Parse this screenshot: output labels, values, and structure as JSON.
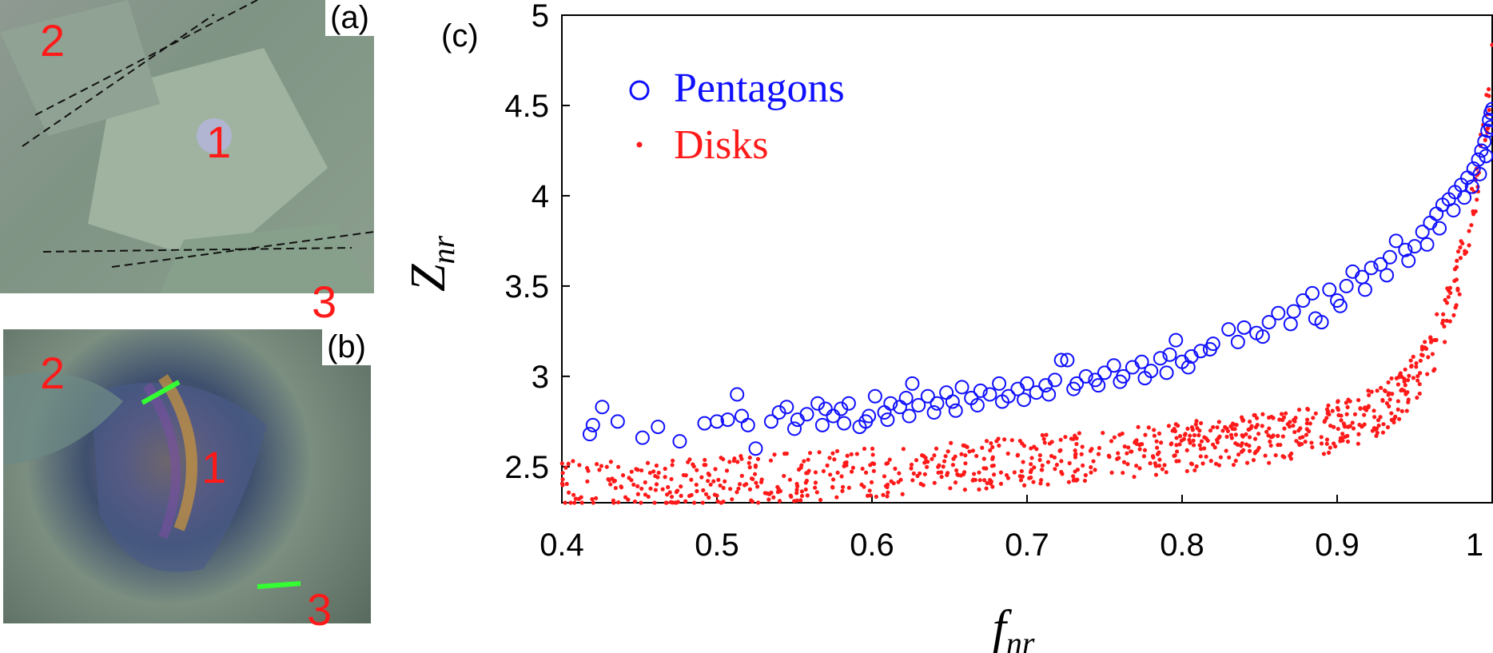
{
  "panel_a": {
    "label": "(a)",
    "numbers": [
      "2",
      "1",
      "3"
    ]
  },
  "panel_b": {
    "label": "(b)",
    "numbers": [
      "2",
      "1",
      "3"
    ]
  },
  "panel_c_label": "(c)",
  "colors": {
    "pentagons": "#1010ff",
    "disks": "#ff1a1a",
    "accent_green": "#33ff33",
    "photo_dash": "#111111"
  },
  "chart_data": {
    "type": "scatter",
    "xlabel": "f_nr",
    "ylabel": "Z_nr",
    "xlim": [
      0.4,
      1.0
    ],
    "ylim": [
      2.3,
      5.0
    ],
    "xticks": [
      "0.4",
      "0.5",
      "0.6",
      "0.7",
      "0.8",
      "0.9",
      "1"
    ],
    "yticks": [
      "2.5",
      "3",
      "3.5",
      "4",
      "4.5",
      "5"
    ],
    "legend_position": "top-left",
    "series": [
      {
        "name": "Pentagons",
        "marker": "circle-open",
        "points": [
          [
            0.418,
            2.68
          ],
          [
            0.42,
            2.73
          ],
          [
            0.426,
            2.83
          ],
          [
            0.436,
            2.75
          ],
          [
            0.452,
            2.66
          ],
          [
            0.462,
            2.72
          ],
          [
            0.476,
            2.64
          ],
          [
            0.492,
            2.74
          ],
          [
            0.5,
            2.75
          ],
          [
            0.507,
            2.76
          ],
          [
            0.513,
            2.9
          ],
          [
            0.516,
            2.78
          ],
          [
            0.52,
            2.73
          ],
          [
            0.525,
            2.6
          ],
          [
            0.535,
            2.75
          ],
          [
            0.54,
            2.8
          ],
          [
            0.545,
            2.83
          ],
          [
            0.552,
            2.76
          ],
          [
            0.558,
            2.79
          ],
          [
            0.565,
            2.85
          ],
          [
            0.57,
            2.82
          ],
          [
            0.575,
            2.78
          ],
          [
            0.58,
            2.82
          ],
          [
            0.585,
            2.85
          ],
          [
            0.592,
            2.72
          ],
          [
            0.598,
            2.78
          ],
          [
            0.602,
            2.89
          ],
          [
            0.608,
            2.8
          ],
          [
            0.612,
            2.85
          ],
          [
            0.618,
            2.83
          ],
          [
            0.622,
            2.88
          ],
          [
            0.626,
            2.96
          ],
          [
            0.63,
            2.84
          ],
          [
            0.636,
            2.89
          ],
          [
            0.642,
            2.85
          ],
          [
            0.648,
            2.91
          ],
          [
            0.652,
            2.86
          ],
          [
            0.658,
            2.94
          ],
          [
            0.664,
            2.88
          ],
          [
            0.67,
            2.92
          ],
          [
            0.676,
            2.9
          ],
          [
            0.682,
            2.96
          ],
          [
            0.688,
            2.89
          ],
          [
            0.694,
            2.93
          ],
          [
            0.7,
            2.96
          ],
          [
            0.706,
            2.91
          ],
          [
            0.712,
            2.95
          ],
          [
            0.718,
            2.98
          ],
          [
            0.722,
            3.09
          ],
          [
            0.726,
            3.09
          ],
          [
            0.732,
            2.96
          ],
          [
            0.738,
            3.0
          ],
          [
            0.744,
            2.98
          ],
          [
            0.75,
            3.02
          ],
          [
            0.756,
            3.06
          ],
          [
            0.762,
            3.0
          ],
          [
            0.768,
            3.05
          ],
          [
            0.774,
            3.08
          ],
          [
            0.78,
            3.03
          ],
          [
            0.786,
            3.1
          ],
          [
            0.792,
            3.12
          ],
          [
            0.796,
            3.2
          ],
          [
            0.8,
            3.08
          ],
          [
            0.806,
            3.11
          ],
          [
            0.812,
            3.14
          ],
          [
            0.82,
            3.18
          ],
          [
            0.83,
            3.26
          ],
          [
            0.84,
            3.27
          ],
          [
            0.848,
            3.24
          ],
          [
            0.856,
            3.3
          ],
          [
            0.862,
            3.35
          ],
          [
            0.872,
            3.36
          ],
          [
            0.878,
            3.42
          ],
          [
            0.884,
            3.46
          ],
          [
            0.89,
            3.3
          ],
          [
            0.895,
            3.48
          ],
          [
            0.9,
            3.42
          ],
          [
            0.906,
            3.5
          ],
          [
            0.91,
            3.58
          ],
          [
            0.916,
            3.55
          ],
          [
            0.922,
            3.6
          ],
          [
            0.928,
            3.62
          ],
          [
            0.934,
            3.66
          ],
          [
            0.938,
            3.75
          ],
          [
            0.944,
            3.7
          ],
          [
            0.95,
            3.72
          ],
          [
            0.955,
            3.8
          ],
          [
            0.96,
            3.85
          ],
          [
            0.964,
            3.9
          ],
          [
            0.968,
            3.95
          ],
          [
            0.972,
            3.98
          ],
          [
            0.976,
            4.02
          ],
          [
            0.98,
            4.06
          ],
          [
            0.984,
            4.1
          ],
          [
            0.988,
            4.15
          ],
          [
            0.991,
            4.2
          ],
          [
            0.993,
            4.25
          ],
          [
            0.995,
            4.3
          ],
          [
            0.997,
            4.36
          ],
          [
            0.998,
            4.42
          ],
          [
            0.999,
            4.46
          ],
          [
            1.0,
            4.48
          ],
          [
            0.999,
            4.38
          ],
          [
            0.996,
            4.22
          ],
          [
            0.992,
            4.12
          ],
          [
            0.987,
            4.05
          ],
          [
            0.982,
            3.99
          ],
          [
            0.975,
            3.92
          ],
          [
            0.966,
            3.82
          ],
          [
            0.958,
            3.73
          ],
          [
            0.946,
            3.64
          ],
          [
            0.932,
            3.56
          ],
          [
            0.918,
            3.48
          ],
          [
            0.902,
            3.39
          ],
          [
            0.886,
            3.32
          ],
          [
            0.87,
            3.29
          ],
          [
            0.852,
            3.22
          ],
          [
            0.836,
            3.19
          ],
          [
            0.818,
            3.15
          ],
          [
            0.804,
            3.05
          ],
          [
            0.79,
            3.02
          ],
          [
            0.776,
            2.99
          ],
          [
            0.76,
            2.97
          ],
          [
            0.746,
            2.95
          ],
          [
            0.73,
            2.93
          ],
          [
            0.714,
            2.9
          ],
          [
            0.698,
            2.87
          ],
          [
            0.684,
            2.86
          ],
          [
            0.668,
            2.84
          ],
          [
            0.654,
            2.81
          ],
          [
            0.64,
            2.8
          ],
          [
            0.624,
            2.78
          ],
          [
            0.61,
            2.76
          ],
          [
            0.596,
            2.75
          ],
          [
            0.582,
            2.74
          ],
          [
            0.568,
            2.73
          ],
          [
            0.55,
            2.71
          ]
        ]
      },
      {
        "name": "Disks",
        "marker": "dot",
        "generated_count": 900
      }
    ]
  }
}
